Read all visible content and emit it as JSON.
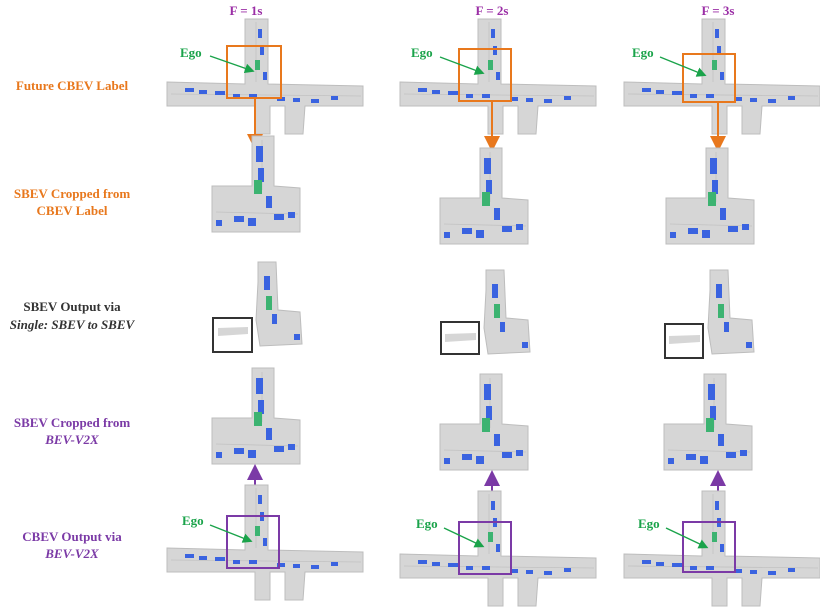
{
  "columns": [
    {
      "label": "F = 1s"
    },
    {
      "label": "F = 2s"
    },
    {
      "label": "F = 3s"
    }
  ],
  "rows": [
    {
      "line1": "Future CBEV Label",
      "line2": "",
      "color": "#e8781d"
    },
    {
      "line1": "SBEV Cropped from",
      "line2": "CBEV Label",
      "color": "#e8781d"
    },
    {
      "line1": "SBEV Output via",
      "line2": "Single: SBEV to SBEV",
      "color": "#333333"
    },
    {
      "line1": "SBEV Cropped from",
      "line2": "BEV-V2X",
      "color": "#7b3aa6"
    },
    {
      "line1": "CBEV Output via",
      "line2": "BEV-V2X",
      "color": "#7b3aa6"
    }
  ],
  "ego_label": "Ego",
  "colors": {
    "road": "#d6d6d6",
    "road_edge": "#bdbdbd",
    "vehicle": "#3a63e0",
    "ego": "#3cb371",
    "orange": "#e8781d",
    "purple": "#7b3aa6",
    "dark": "#333333",
    "header": "#9b2fa6",
    "ego_text": "#1aa34a"
  }
}
